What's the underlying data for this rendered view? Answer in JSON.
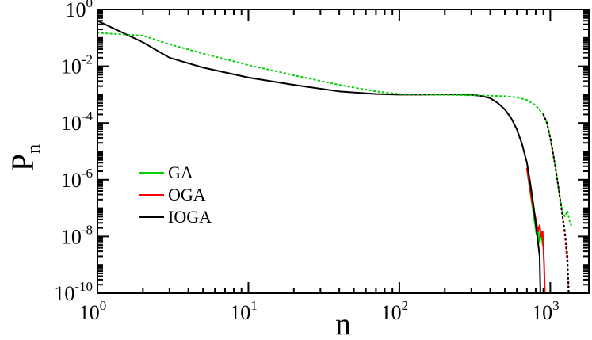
{
  "chart_data": {
    "type": "line",
    "xscale": "log",
    "yscale": "log",
    "xlim": [
      1,
      1800
    ],
    "ylim": [
      1e-10,
      1
    ],
    "xlabel": "n",
    "ylabel": "P",
    "ylabel_sub": "n",
    "x_ticks": [
      {
        "value": 1,
        "base": "10",
        "exp": "0"
      },
      {
        "value": 10,
        "base": "10",
        "exp": "1"
      },
      {
        "value": 100,
        "base": "10",
        "exp": "2"
      },
      {
        "value": 1000,
        "base": "10",
        "exp": "3"
      }
    ],
    "y_ticks": [
      {
        "value": 1,
        "base": "10",
        "exp": "0"
      },
      {
        "value": 0.01,
        "base": "10",
        "exp": "-2"
      },
      {
        "value": 0.0001,
        "base": "10",
        "exp": "-4"
      },
      {
        "value": 1e-06,
        "base": "10",
        "exp": "-6"
      },
      {
        "value": 1e-08,
        "base": "10",
        "exp": "-8"
      },
      {
        "value": 1e-10,
        "base": "10",
        "exp": "-10"
      }
    ],
    "grid": false,
    "legend_position": "bottom-left",
    "series": [
      {
        "name": "GA",
        "color": "#00d000",
        "style": "solid",
        "points": [
          [
            700,
            2.5e-06
          ],
          [
            730,
            5e-07
          ],
          [
            760,
            1.2e-07
          ],
          [
            790,
            3e-08
          ],
          [
            810,
            1.2e-08
          ],
          [
            830,
            2e-08
          ],
          [
            850,
            6e-09
          ],
          [
            870,
            1.5e-08
          ],
          [
            890,
            5e-09
          ],
          [
            900,
            1e-08
          ]
        ]
      },
      {
        "name": "OGA",
        "color": "#ff0000",
        "style": "solid",
        "points": [
          [
            700,
            2.5e-06
          ],
          [
            730,
            6e-07
          ],
          [
            760,
            1.5e-07
          ],
          [
            790,
            6e-08
          ],
          [
            810,
            3e-08
          ],
          [
            830,
            1.5e-08
          ],
          [
            850,
            2.5e-08
          ],
          [
            870,
            1e-08
          ],
          [
            890,
            1.5e-08
          ],
          [
            910,
            1e-09
          ],
          [
            920,
            1e-10
          ]
        ]
      },
      {
        "name": "IOGA",
        "color": "#000000",
        "style": "solid",
        "points": [
          [
            1,
            0.4
          ],
          [
            2,
            0.07
          ],
          [
            3,
            0.02
          ],
          [
            5,
            0.009
          ],
          [
            10,
            0.004
          ],
          [
            20,
            0.0022
          ],
          [
            40,
            0.0013
          ],
          [
            70,
            0.00105
          ],
          [
            100,
            0.001
          ],
          [
            150,
            0.001
          ],
          [
            200,
            0.00102
          ],
          [
            250,
            0.00103
          ],
          [
            300,
            0.00098
          ],
          [
            350,
            0.0009
          ],
          [
            400,
            0.00075
          ],
          [
            450,
            0.0005
          ],
          [
            500,
            0.0003
          ],
          [
            550,
            0.00015
          ],
          [
            600,
            6e-05
          ],
          [
            650,
            1.8e-05
          ],
          [
            700,
            4e-06
          ],
          [
            730,
            1e-06
          ],
          [
            760,
            2.5e-07
          ],
          [
            790,
            5e-08
          ],
          [
            820,
            1e-08
          ],
          [
            850,
            2e-09
          ],
          [
            860,
            1e-10
          ]
        ]
      },
      {
        "name": "",
        "color": "#00d000",
        "style": "dotted",
        "points": [
          [
            1,
            0.15
          ],
          [
            2,
            0.12
          ],
          [
            3,
            0.06
          ],
          [
            5,
            0.028
          ],
          [
            10,
            0.011
          ],
          [
            20,
            0.0048
          ],
          [
            40,
            0.0022
          ],
          [
            70,
            0.0013
          ],
          [
            100,
            0.00105
          ],
          [
            150,
            0.001
          ],
          [
            200,
            0.00098
          ],
          [
            300,
            0.00095
          ],
          [
            400,
            0.00092
          ],
          [
            500,
            0.00088
          ],
          [
            600,
            0.0008
          ],
          [
            700,
            0.00065
          ],
          [
            800,
            0.00042
          ],
          [
            900,
            0.0002
          ],
          [
            950,
            0.0001
          ],
          [
            1000,
            3e-05
          ],
          [
            1050,
            7e-06
          ],
          [
            1100,
            1.5e-06
          ],
          [
            1150,
            3e-07
          ],
          [
            1200,
            8e-08
          ],
          [
            1250,
            5e-08
          ],
          [
            1300,
            8e-08
          ],
          [
            1350,
            3e-08
          ],
          [
            1400,
            2e-08
          ]
        ]
      },
      {
        "name": "",
        "color": "#ff0000",
        "style": "dotted",
        "points": [
          [
            900,
            0.0002
          ],
          [
            950,
            0.0001
          ],
          [
            1000,
            3e-05
          ],
          [
            1050,
            7e-06
          ],
          [
            1100,
            1.5e-06
          ],
          [
            1150,
            3e-07
          ],
          [
            1200,
            6e-08
          ],
          [
            1250,
            1e-08
          ],
          [
            1300,
            1e-09
          ],
          [
            1330,
            1e-10
          ]
        ]
      },
      {
        "name": "",
        "color": "#000000",
        "style": "dotted",
        "points": [
          [
            900,
            0.0002
          ],
          [
            950,
            0.0001
          ],
          [
            1000,
            3e-05
          ],
          [
            1050,
            7e-06
          ],
          [
            1100,
            1.5e-06
          ],
          [
            1150,
            3e-07
          ],
          [
            1200,
            6e-08
          ],
          [
            1250,
            1.5e-08
          ],
          [
            1300,
            2e-09
          ],
          [
            1320,
            1e-10
          ]
        ]
      }
    ]
  }
}
